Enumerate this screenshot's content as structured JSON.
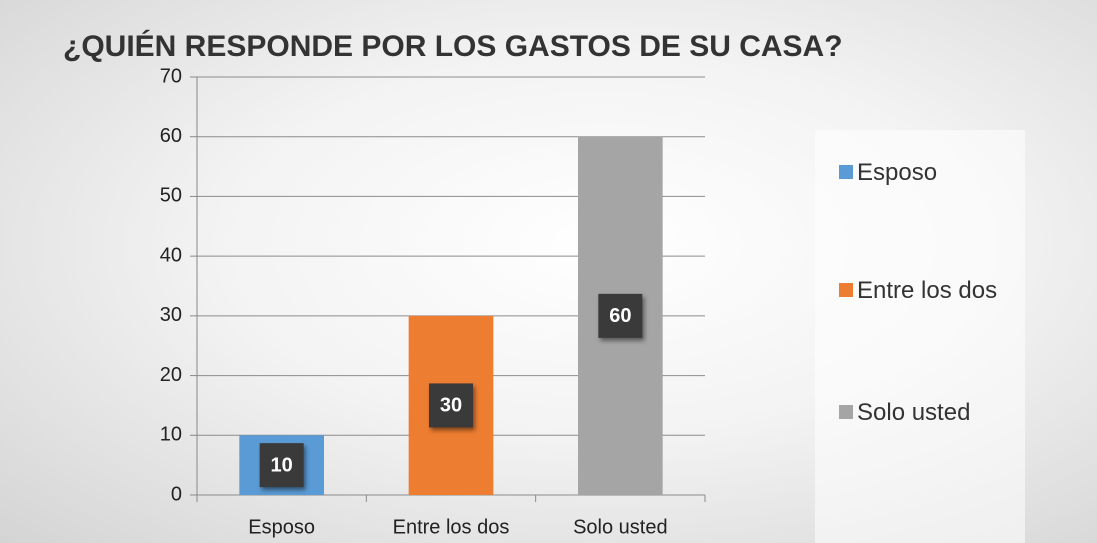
{
  "chart_data": {
    "type": "bar",
    "title": "¿QUIÉN RESPONDE POR LOS GASTOS DE SU CASA?",
    "categories": [
      "Esposo",
      "Entre los dos",
      "Solo usted"
    ],
    "values": [
      10,
      30,
      60
    ],
    "colors": [
      "#5b9bd5",
      "#ed7d31",
      "#a5a5a5"
    ],
    "ylim": [
      0,
      70
    ],
    "yticks": [
      0,
      10,
      20,
      30,
      40,
      50,
      60,
      70
    ],
    "grid": true,
    "legend": "right"
  }
}
